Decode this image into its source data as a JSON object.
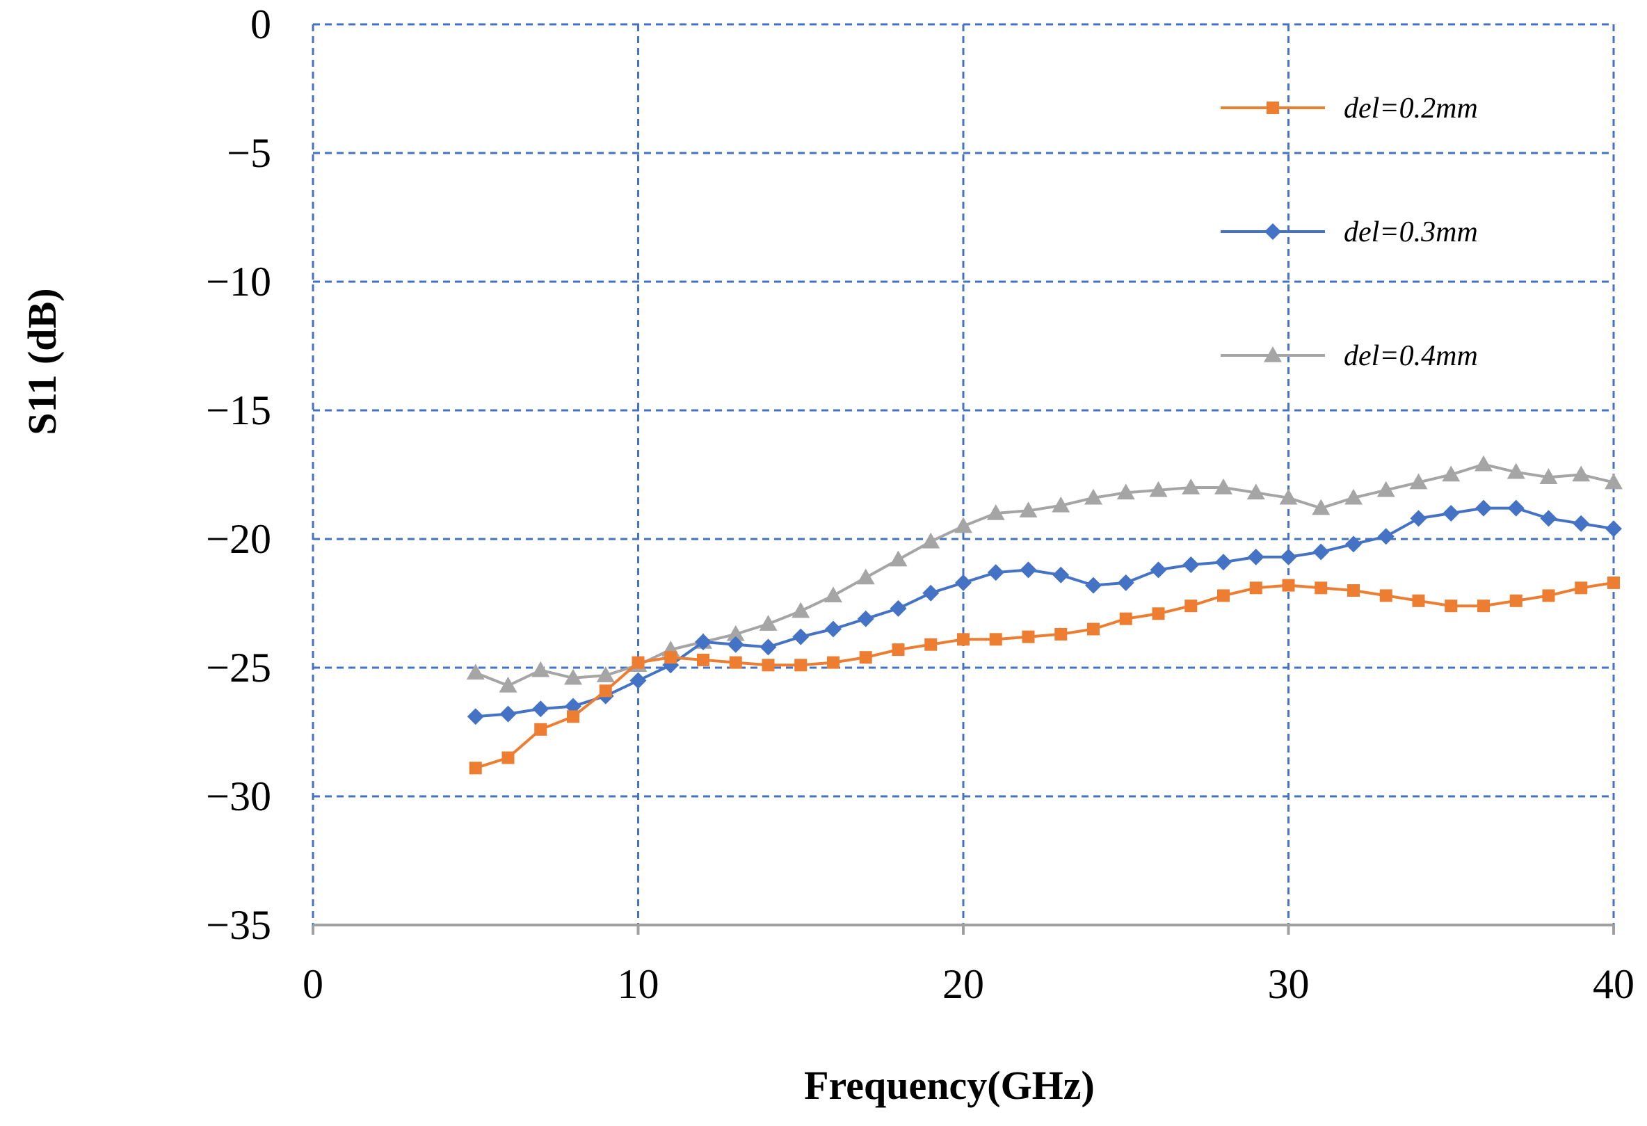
{
  "chart_data": {
    "type": "line",
    "title": "",
    "xlabel": "Frequency(GHz)",
    "ylabel": "S11 (dB)",
    "xlim": [
      0,
      40
    ],
    "ylim": [
      -35,
      0
    ],
    "xticks": [
      0,
      10,
      20,
      30,
      40
    ],
    "yticks": [
      0,
      -5,
      -10,
      -15,
      -20,
      -25,
      -30,
      -35
    ],
    "xtick_labels": [
      "0",
      "10",
      "20",
      "30",
      "40"
    ],
    "ytick_labels": [
      "0",
      "−5",
      "−10",
      "−15",
      "−20",
      "−25",
      "−30",
      "−35"
    ],
    "grid": true,
    "legend_position": "top-right",
    "x": [
      5,
      6,
      7,
      8,
      9,
      10,
      11,
      12,
      13,
      14,
      15,
      16,
      17,
      18,
      19,
      20,
      21,
      22,
      23,
      24,
      25,
      26,
      27,
      28,
      29,
      30,
      31,
      32,
      33,
      34,
      35,
      36,
      37,
      38,
      39,
      40
    ],
    "series": [
      {
        "name": "del=0.2mm",
        "color": "#ED7D31",
        "marker": "square",
        "values": [
          -28.9,
          -28.5,
          -27.4,
          -26.9,
          -25.9,
          -24.8,
          -24.6,
          -24.7,
          -24.8,
          -24.9,
          -24.9,
          -24.8,
          -24.6,
          -24.3,
          -24.1,
          -23.9,
          -23.9,
          -23.8,
          -23.7,
          -23.5,
          -23.1,
          -22.9,
          -22.6,
          -22.2,
          -21.9,
          -21.8,
          -21.9,
          -22.0,
          -22.2,
          -22.4,
          -22.6,
          -22.6,
          -22.4,
          -22.2,
          -21.9,
          -21.7
        ]
      },
      {
        "name": "del=0.3mm",
        "color": "#4472C4",
        "marker": "diamond",
        "values": [
          -26.9,
          -26.8,
          -26.6,
          -26.5,
          -26.1,
          -25.5,
          -24.9,
          -24.0,
          -24.1,
          -24.2,
          -23.8,
          -23.5,
          -23.1,
          -22.7,
          -22.1,
          -21.7,
          -21.3,
          -21.2,
          -21.4,
          -21.8,
          -21.7,
          -21.2,
          -21.0,
          -20.9,
          -20.7,
          -20.7,
          -20.5,
          -20.2,
          -19.9,
          -19.2,
          -19.0,
          -18.8,
          -18.8,
          -19.2,
          -19.4,
          -19.6
        ]
      },
      {
        "name": "del=0.4mm",
        "color": "#A5A5A5",
        "marker": "triangle",
        "values": [
          -25.2,
          -25.7,
          -25.1,
          -25.4,
          -25.3,
          -24.9,
          -24.3,
          -24.0,
          -23.7,
          -23.3,
          -22.8,
          -22.2,
          -21.5,
          -20.8,
          -20.1,
          -19.5,
          -19.0,
          -18.9,
          -18.7,
          -18.4,
          -18.2,
          -18.1,
          -18.0,
          -18.0,
          -18.2,
          -18.4,
          -18.8,
          -18.4,
          -18.1,
          -17.8,
          -17.5,
          -17.1,
          -17.4,
          -17.6,
          -17.5,
          -17.8
        ]
      }
    ]
  }
}
